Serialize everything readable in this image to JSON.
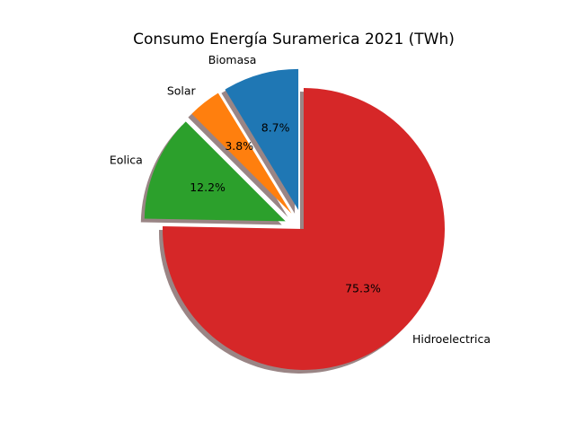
{
  "chart_data": {
    "type": "pie",
    "title": "Consumo Energía Suramerica 2021 (TWh)",
    "categories": [
      "Biomasa",
      "Solar",
      "Eolica",
      "Hidroelectrica"
    ],
    "percent_labels": [
      "8.7%",
      "3.8%",
      "12.2%",
      "75.3%"
    ],
    "values": [
      8.7,
      3.8,
      12.2,
      75.3
    ],
    "colors": [
      "#1f77b4",
      "#ff7f0e",
      "#2ca02c",
      "#d62728"
    ],
    "shadow_color": "#9a8585",
    "exploded": [
      true,
      true,
      true,
      false
    ],
    "start_angle_deg": 90,
    "direction": "counterclockwise"
  }
}
